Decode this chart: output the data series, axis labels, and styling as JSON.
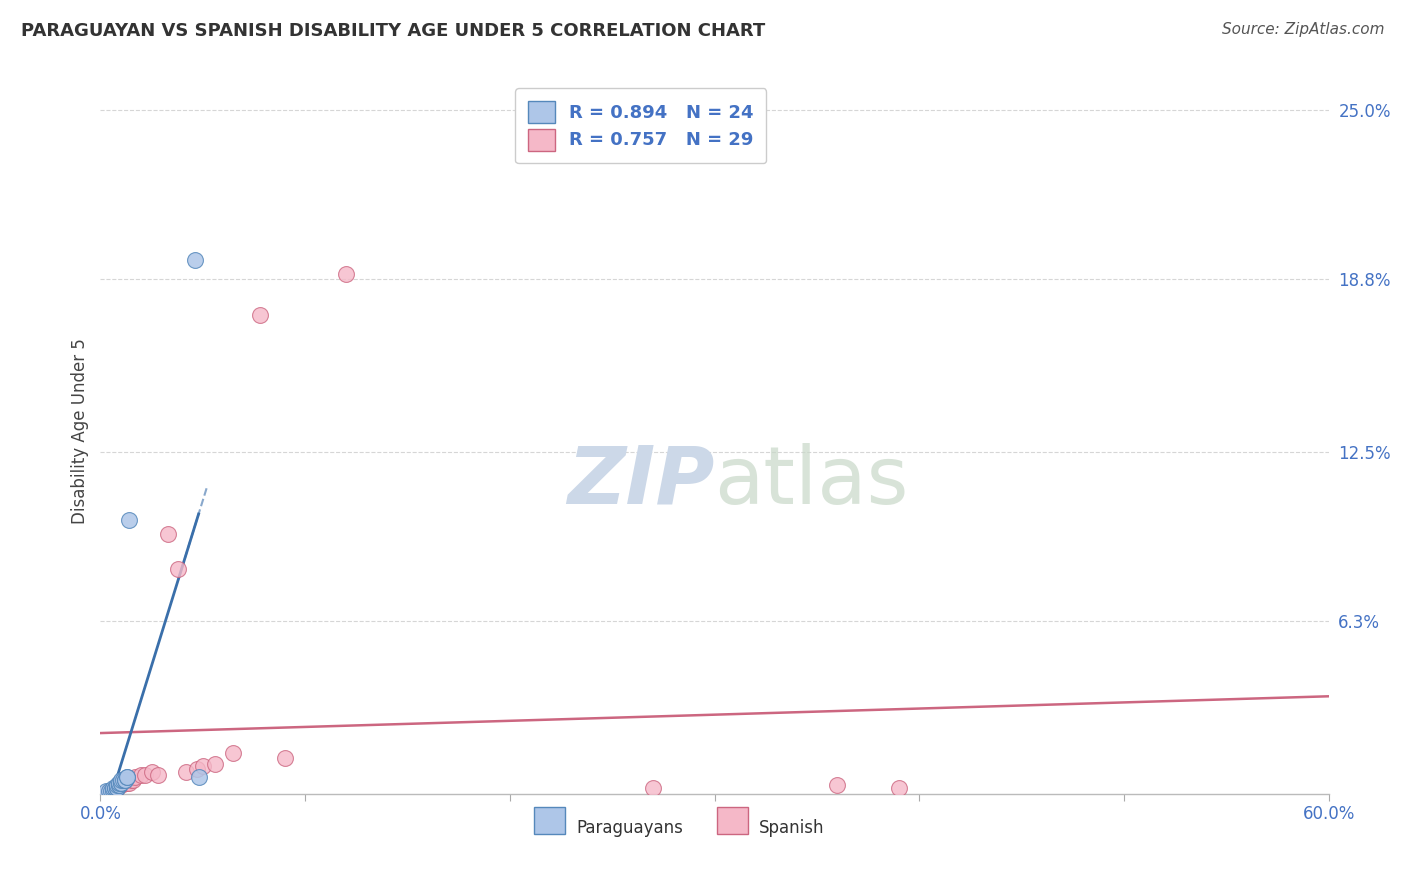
{
  "title": "PARAGUAYAN VS SPANISH DISABILITY AGE UNDER 5 CORRELATION CHART",
  "source": "Source: ZipAtlas.com",
  "ylabel_label": "Disability Age Under 5",
  "xlim": [
    0.0,
    0.6
  ],
  "ylim": [
    0.0,
    0.265
  ],
  "paraguayan_R": 0.894,
  "paraguayan_N": 24,
  "spanish_R": 0.757,
  "spanish_N": 29,
  "paraguayan_color": "#aec6e8",
  "paraguayan_line_color": "#3a6faa",
  "paraguayan_edge_color": "#5588bb",
  "spanish_color": "#f5b8c8",
  "spanish_line_color": "#cc6680",
  "spanish_edge_color": "#cc6680",
  "background_color": "#ffffff",
  "grid_color": "#cccccc",
  "watermark_color": "#ccd8e8",
  "tick_label_color": "#4472c4",
  "title_color": "#333333",
  "paraguayan_x": [
    0.003,
    0.004,
    0.005,
    0.006,
    0.006,
    0.007,
    0.007,
    0.008,
    0.008,
    0.008,
    0.009,
    0.009,
    0.009,
    0.01,
    0.01,
    0.01,
    0.011,
    0.012,
    0.012,
    0.013,
    0.013,
    0.014,
    0.046,
    0.048
  ],
  "paraguayan_y": [
    0.001,
    0.001,
    0.001,
    0.001,
    0.002,
    0.002,
    0.002,
    0.002,
    0.002,
    0.003,
    0.003,
    0.003,
    0.004,
    0.004,
    0.004,
    0.005,
    0.005,
    0.005,
    0.005,
    0.006,
    0.006,
    0.1,
    0.195,
    0.006
  ],
  "spanish_x": [
    0.004,
    0.005,
    0.007,
    0.008,
    0.009,
    0.01,
    0.012,
    0.013,
    0.014,
    0.015,
    0.016,
    0.017,
    0.02,
    0.022,
    0.025,
    0.028,
    0.033,
    0.038,
    0.042,
    0.047,
    0.05,
    0.056,
    0.065,
    0.078,
    0.09,
    0.12,
    0.27,
    0.36,
    0.39
  ],
  "spanish_y": [
    0.001,
    0.001,
    0.002,
    0.002,
    0.003,
    0.003,
    0.004,
    0.004,
    0.004,
    0.005,
    0.005,
    0.006,
    0.007,
    0.007,
    0.008,
    0.007,
    0.095,
    0.082,
    0.008,
    0.009,
    0.01,
    0.011,
    0.015,
    0.175,
    0.013,
    0.19,
    0.002,
    0.003,
    0.002
  ],
  "ytick_positions": [
    0.063,
    0.125,
    0.188,
    0.25
  ],
  "yticklabels": [
    "6.3%",
    "12.5%",
    "18.8%",
    "25.0%"
  ],
  "xtick_show": [
    0.0,
    0.6
  ],
  "xticklabels_show": [
    "0.0%",
    "60.0%"
  ]
}
